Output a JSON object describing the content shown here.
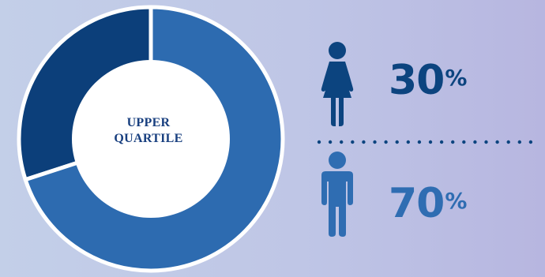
{
  "chart_data": {
    "type": "pie",
    "title": "",
    "center_label": [
      "UPPER",
      "QUARTILE"
    ],
    "categories": [
      "Female",
      "Male"
    ],
    "values": [
      30,
      70
    ],
    "colors": [
      "#0c3f7a",
      "#2d6bb0"
    ]
  },
  "stats": {
    "female": {
      "icon": "female-icon",
      "value": "30",
      "unit": "%",
      "color": "#0c447f"
    },
    "male": {
      "icon": "male-icon",
      "value": "70",
      "unit": "%",
      "color": "#2f6db2"
    }
  }
}
